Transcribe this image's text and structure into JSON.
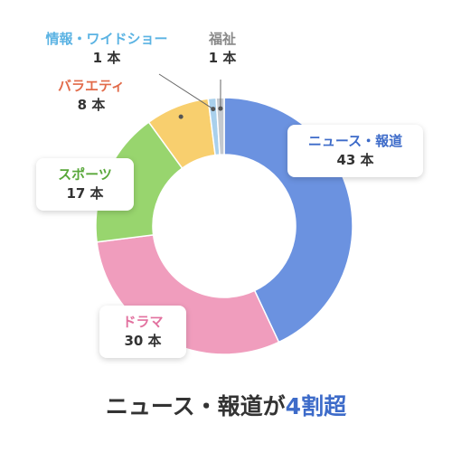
{
  "chart_data": {
    "type": "pie",
    "categories": [
      "ニュース・報道",
      "ドラマ",
      "スポーツ",
      "バラエティ",
      "情報・ワイドショー",
      "福祉"
    ],
    "values": [
      43,
      30,
      17,
      8,
      1,
      1
    ],
    "unit": "本",
    "colors": [
      "#6b92e0",
      "#f09dbd",
      "#98d56e",
      "#f8cf6e",
      "#a9d0ec",
      "#c4c9cf"
    ],
    "label_colors": [
      "#3d6bc9",
      "#e2719f",
      "#59a83a",
      "#e26b4a",
      "#5bb3e3",
      "#888888"
    ],
    "counts": [
      "43 本",
      "30 本",
      "17 本",
      "8 本",
      "1 本",
      "1 本"
    ],
    "caption_main": "ニュース・報道が",
    "caption_accent": "4割超"
  }
}
